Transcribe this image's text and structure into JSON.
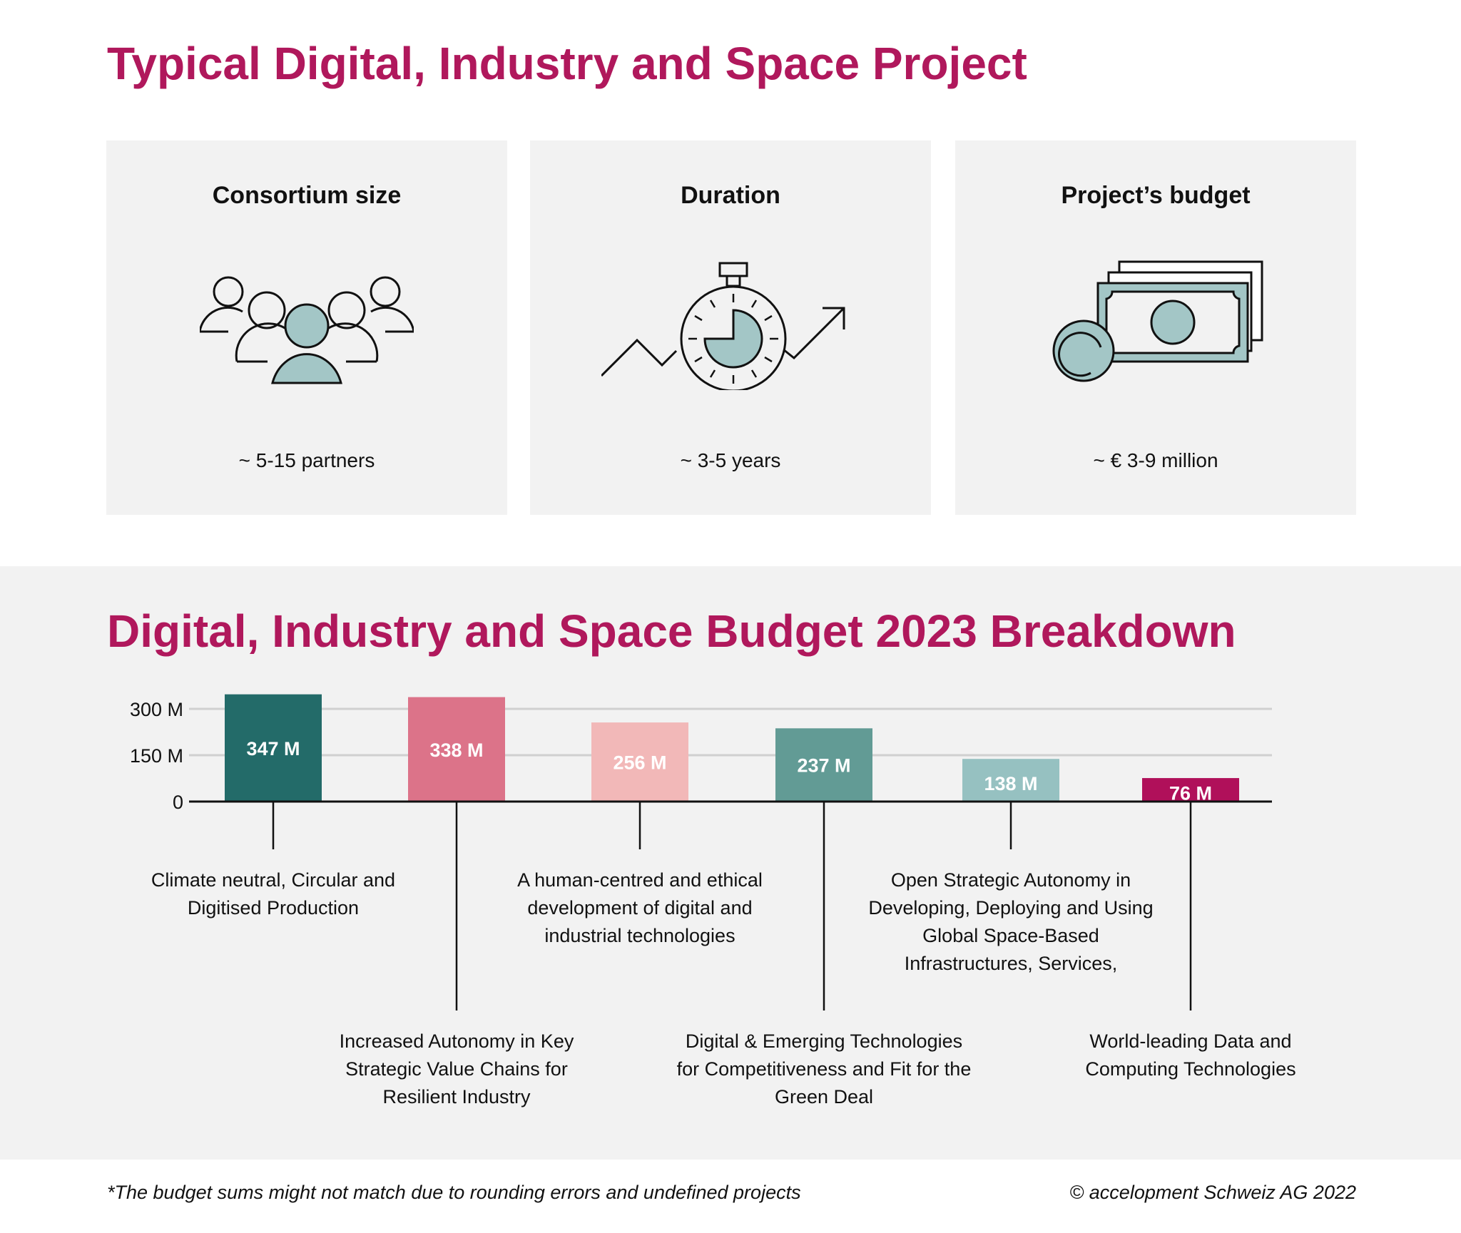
{
  "header": {
    "title": "Typical Digital, Industry and Space Project"
  },
  "cards": [
    {
      "title": "Consortium size",
      "value": "~ 5-15 partners",
      "icon": "people-group-icon"
    },
    {
      "title": "Duration",
      "value": "~ 3-5 years",
      "icon": "stopwatch-trend-icon"
    },
    {
      "title": "Project’s budget",
      "value": "~ € 3-9 million",
      "icon": "money-icon"
    }
  ],
  "colors": {
    "accent": "#b0185c",
    "icon_fill": "#a3c6c6",
    "panel": "#f2f2f2"
  },
  "chart_data": {
    "type": "bar",
    "title": "Digital, Industry and Space Budget 2023 Breakdown",
    "categories": [
      "Climate neutral, Circular and Digitised Production",
      "Increased Autonomy in Key Strategic Value Chains for Resilient Industry",
      "A human-centred and ethical development of digital and industrial technologies",
      "Digital & Emerging Technologies for Competitiveness and Fit for the Green Deal",
      "Open Strategic Autonomy in Developing, Deploying and Using Global Space-Based Infrastructures, Services,",
      "World-leading Data and Computing Technologies"
    ],
    "values": [
      347,
      338,
      256,
      237,
      138,
      76
    ],
    "data_labels": [
      "347 M",
      "338 M",
      "256 M",
      "237 M",
      "138 M",
      "76 M"
    ],
    "bar_colors": [
      "#236b69",
      "#dc7389",
      "#f2b8b8",
      "#629b95",
      "#96c1c1",
      "#b0105a"
    ],
    "yticks": [
      0,
      150,
      300
    ],
    "ytick_labels": [
      "0",
      "150 M",
      "300 M"
    ],
    "ylim": [
      0,
      350
    ],
    "grid": true
  },
  "footer": {
    "note": "*The budget sums might not match due to rounding errors and undefined projects",
    "copyright": "© accelopment Schweiz AG 2022"
  }
}
